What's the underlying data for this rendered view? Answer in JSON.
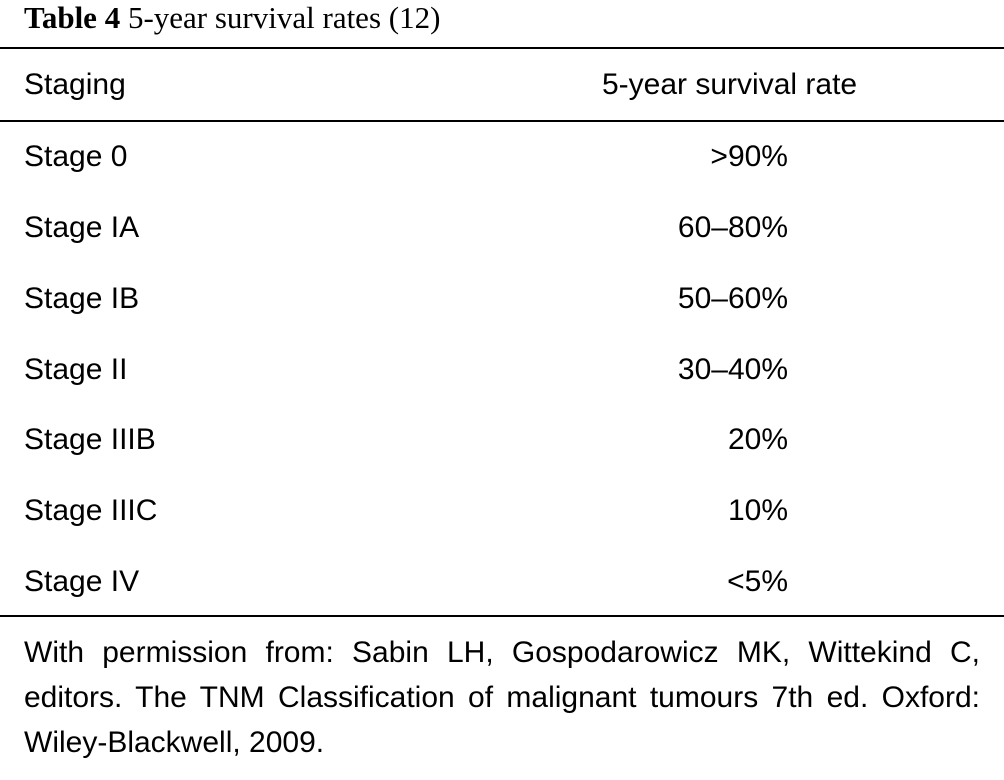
{
  "caption": {
    "label": "Table 4",
    "title": "5-year survival rates (12)"
  },
  "table": {
    "headers": [
      "Staging",
      "5-year survival rate"
    ],
    "rows": [
      {
        "stage": "Stage 0",
        "rate": ">90%"
      },
      {
        "stage": "Stage IA",
        "rate": "60–80%"
      },
      {
        "stage": "Stage IB",
        "rate": "50–60%"
      },
      {
        "stage": "Stage II",
        "rate": "30–40%"
      },
      {
        "stage": "Stage IIIB",
        "rate": "20%"
      },
      {
        "stage": "Stage IIIC",
        "rate": "10%"
      },
      {
        "stage": "Stage IV",
        "rate": "<5%"
      }
    ]
  },
  "footnote": "With permission from: Sabin LH, Gospodarowicz MK, Wittekind C, editors. The TNM Classification of malignant tumours 7th ed. Oxford: Wiley-Blackwell, 2009."
}
